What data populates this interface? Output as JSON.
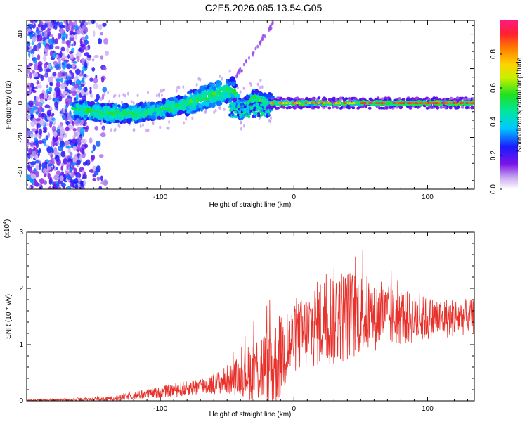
{
  "title": "C2E5.2026.085.13.54.G05",
  "chart_data": [
    {
      "type": "heatmap",
      "xlabel": "Height of straight line (km)",
      "ylabel": "Frequency (Hz)",
      "xlim": [
        -200,
        135
      ],
      "ylim": [
        -50,
        48
      ],
      "xticks": [
        -100,
        0,
        100
      ],
      "xtick_labels": [
        "-100",
        "0",
        "100"
      ],
      "yticks": [
        -40,
        -20,
        0,
        20,
        40
      ],
      "ytick_labels": [
        "-40",
        "-20",
        "0",
        "20",
        "40"
      ],
      "colorbar": {
        "label": "Normalized spectral amplitude",
        "range": [
          0,
          1
        ],
        "ticks": [
          0.0,
          0.2,
          0.4,
          0.6,
          0.8
        ],
        "tick_labels": [
          "0.0",
          "0.2",
          "0.4",
          "0.6",
          "0.8"
        ]
      },
      "ridge": {
        "description_points_km": [
          -160,
          -140,
          -120,
          -100,
          -80,
          -60,
          -45,
          -40,
          -30,
          -20,
          0,
          50,
          135
        ],
        "frequency_hz": [
          -4,
          -6,
          -6,
          -4,
          0,
          5,
          8,
          -5,
          3,
          0,
          0,
          0,
          0
        ]
      }
    },
    {
      "type": "line",
      "xlabel": "Height of straight line (km)",
      "ylabel": "SNR (10 * v/v)",
      "multiplier_label": "(x10",
      "multiplier_exp": "4",
      "xlim": [
        -200,
        135
      ],
      "ylim": [
        0,
        3
      ],
      "xticks": [
        -100,
        0,
        100
      ],
      "xtick_labels": [
        "-100",
        "0",
        "100"
      ],
      "yticks": [
        0,
        1,
        2,
        3
      ],
      "ytick_labels": [
        "0",
        "1",
        "2",
        "3"
      ],
      "series": [
        {
          "name": "SNR",
          "color": "#e8312b",
          "envelope_x": [
            -200,
            -140,
            -100,
            -60,
            -40,
            -25,
            -15,
            0,
            20,
            30,
            50,
            70,
            100,
            135
          ],
          "envelope_mean": [
            0.01,
            0.03,
            0.15,
            0.3,
            0.45,
            0.6,
            0.6,
            1.1,
            1.4,
            1.5,
            1.55,
            1.5,
            1.45,
            1.5
          ],
          "envelope_spread": [
            0.01,
            0.04,
            0.1,
            0.18,
            0.35,
            0.7,
            0.8,
            0.6,
            0.8,
            0.9,
            0.75,
            0.55,
            0.4,
            0.3
          ]
        }
      ]
    }
  ]
}
